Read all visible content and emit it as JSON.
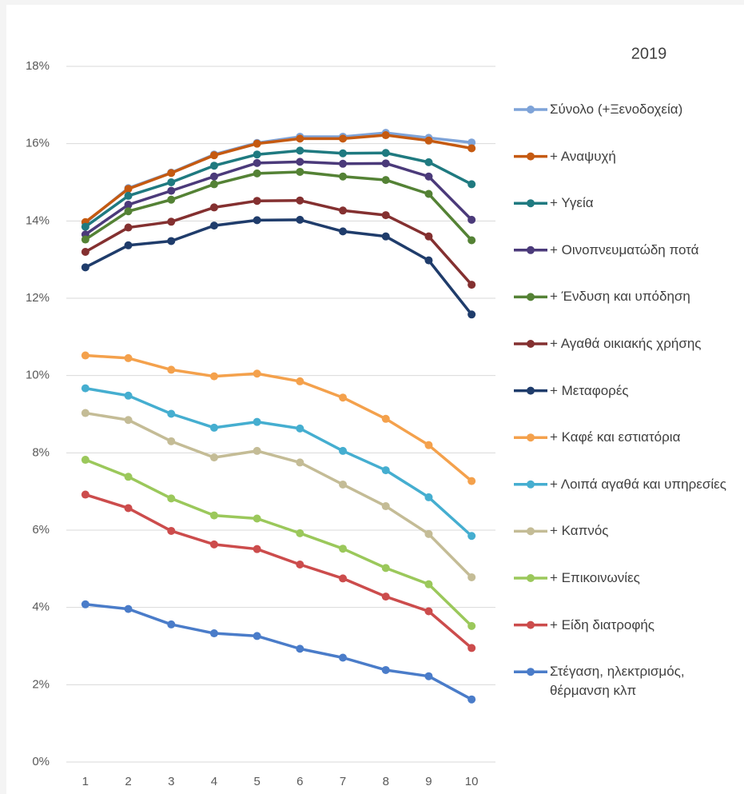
{
  "chart_data": {
    "type": "line",
    "title": "2019",
    "categories": [
      "1",
      "2",
      "3",
      "4",
      "5",
      "6",
      "7",
      "8",
      "9",
      "10"
    ],
    "ylim": [
      0,
      18
    ],
    "yticks": [
      {
        "value": 0,
        "label": "0%"
      },
      {
        "value": 2,
        "label": "2%"
      },
      {
        "value": 4,
        "label": "4%"
      },
      {
        "value": 6,
        "label": "6%"
      },
      {
        "value": 8,
        "label": "8%"
      },
      {
        "value": 10,
        "label": "10%"
      },
      {
        "value": 12,
        "label": "12%"
      },
      {
        "value": 14,
        "label": "14%"
      },
      {
        "value": 16,
        "label": "16%"
      },
      {
        "value": 18,
        "label": "18%"
      }
    ],
    "grid": true,
    "series": [
      {
        "name": "Σύνολο (+Ξενοδοχεία)",
        "color": "#7ea3d8",
        "values": [
          13.95,
          14.85,
          15.25,
          15.72,
          16.02,
          16.18,
          16.18,
          16.28,
          16.15,
          16.03
        ]
      },
      {
        "name": "+ Αναψυχή",
        "color": "#c55a11",
        "values": [
          13.97,
          14.83,
          15.24,
          15.7,
          16.0,
          16.13,
          16.13,
          16.22,
          16.08,
          15.88
        ]
      },
      {
        "name": "+ Υγεία",
        "color": "#1f7a80",
        "values": [
          13.85,
          14.65,
          15.0,
          15.43,
          15.72,
          15.82,
          15.75,
          15.76,
          15.52,
          14.95
        ]
      },
      {
        "name": "+ Οινοπνευματώδη ποτά",
        "color": "#4b3a7a",
        "values": [
          13.65,
          14.42,
          14.78,
          15.15,
          15.5,
          15.53,
          15.48,
          15.49,
          15.15,
          14.03
        ]
      },
      {
        "name": "+ Ένδυση και υπόδηση",
        "color": "#548235",
        "values": [
          13.52,
          14.25,
          14.55,
          14.95,
          15.23,
          15.27,
          15.15,
          15.06,
          14.7,
          13.5
        ]
      },
      {
        "name": "+ Αγαθά οικιακής χρήσης",
        "color": "#843030",
        "values": [
          13.2,
          13.83,
          13.98,
          14.35,
          14.52,
          14.53,
          14.27,
          14.15,
          13.6,
          12.35
        ]
      },
      {
        "name": "+ Μεταφορές",
        "color": "#1f3c6b",
        "values": [
          12.8,
          13.37,
          13.48,
          13.88,
          14.02,
          14.03,
          13.73,
          13.6,
          12.98,
          11.58
        ]
      },
      {
        "name": "+ Καφέ και εστιατόρια",
        "color": "#f4a14c",
        "values": [
          10.52,
          10.45,
          10.15,
          9.98,
          10.05,
          9.85,
          9.43,
          8.88,
          8.2,
          7.27
        ]
      },
      {
        "name": "+ Λοιπά αγαθά και υπηρεσίες",
        "color": "#45aed0",
        "values": [
          9.67,
          9.48,
          9.01,
          8.65,
          8.8,
          8.63,
          8.05,
          7.55,
          6.85,
          5.85
        ]
      },
      {
        "name": "+ Καπνός",
        "color": "#c4bc96",
        "values": [
          9.03,
          8.85,
          8.3,
          7.88,
          8.05,
          7.75,
          7.18,
          6.62,
          5.9,
          4.78
        ]
      },
      {
        "name": "+ Επικοινωνίες",
        "color": "#9bc85b",
        "values": [
          7.82,
          7.38,
          6.82,
          6.38,
          6.3,
          5.92,
          5.52,
          5.02,
          4.6,
          3.52
        ]
      },
      {
        "name": "+ Είδη διατροφής",
        "color": "#cc4c4c",
        "values": [
          6.92,
          6.57,
          5.98,
          5.63,
          5.51,
          5.11,
          4.75,
          4.28,
          3.9,
          2.95
        ]
      },
      {
        "name": "Στέγαση, ηλεκτρισμός, θέρμανση κλπ",
        "color": "#4a7cc9",
        "values": [
          4.08,
          3.96,
          3.56,
          3.33,
          3.26,
          2.93,
          2.7,
          2.38,
          2.22,
          1.62
        ]
      }
    ]
  }
}
